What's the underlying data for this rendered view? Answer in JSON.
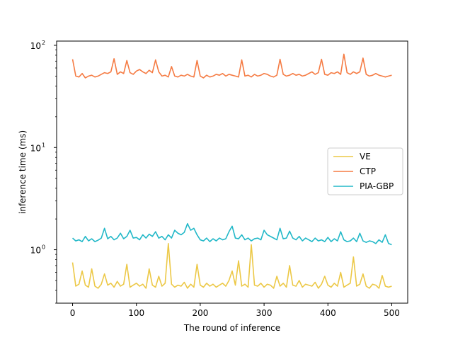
{
  "chart_data": {
    "type": "line",
    "title": "",
    "xlabel": "The round of inference",
    "ylabel": "inference time (ms)",
    "xlim": [
      -25,
      525
    ],
    "ylim": [
      0.3,
      110
    ],
    "yscale": "log",
    "grid": false,
    "legend_position": "center-right",
    "x_ticks": [
      0,
      100,
      200,
      300,
      400,
      500
    ],
    "x_tick_labels": [
      "0",
      "100",
      "200",
      "300",
      "400",
      "500"
    ],
    "y_ticks": [
      1,
      10,
      100
    ],
    "y_tick_labels": [
      "10",
      "10",
      "10"
    ],
    "y_tick_exponents": [
      "0",
      "1",
      "2"
    ],
    "series": [
      {
        "name": "VE",
        "color": "#ecc846",
        "baseline": 0.45,
        "x": [
          0,
          5,
          10,
          15,
          20,
          25,
          30,
          35,
          40,
          45,
          50,
          55,
          60,
          65,
          70,
          75,
          80,
          85,
          90,
          95,
          100,
          105,
          110,
          115,
          120,
          125,
          130,
          135,
          140,
          145,
          150,
          155,
          160,
          165,
          170,
          175,
          180,
          185,
          190,
          195,
          200,
          205,
          210,
          215,
          220,
          225,
          230,
          235,
          240,
          245,
          250,
          255,
          260,
          265,
          270,
          275,
          280,
          285,
          290,
          295,
          300,
          305,
          310,
          315,
          320,
          325,
          330,
          335,
          340,
          345,
          350,
          355,
          360,
          365,
          370,
          375,
          380,
          385,
          390,
          395,
          400,
          405,
          410,
          415,
          420,
          425,
          430,
          435,
          440,
          445,
          450,
          455,
          460,
          465,
          470,
          475,
          480,
          485,
          490,
          495,
          500
        ],
        "values": [
          0.75,
          0.44,
          0.46,
          0.62,
          0.45,
          0.43,
          0.65,
          0.44,
          0.42,
          0.46,
          0.58,
          0.45,
          0.47,
          0.43,
          0.49,
          0.44,
          0.46,
          0.72,
          0.43,
          0.45,
          0.47,
          0.44,
          0.46,
          0.42,
          0.65,
          0.45,
          0.43,
          0.55,
          0.44,
          0.47,
          1.15,
          0.46,
          0.43,
          0.45,
          0.44,
          0.48,
          0.42,
          0.46,
          0.43,
          0.72,
          0.45,
          0.43,
          0.47,
          0.44,
          0.46,
          0.43,
          0.45,
          0.47,
          0.44,
          0.5,
          0.62,
          0.45,
          0.78,
          0.44,
          0.46,
          0.43,
          1.12,
          0.45,
          0.44,
          0.47,
          0.43,
          0.46,
          0.45,
          0.42,
          0.55,
          0.44,
          0.47,
          0.43,
          0.7,
          0.45,
          0.44,
          0.5,
          0.43,
          0.46,
          0.45,
          0.44,
          0.48,
          0.42,
          0.46,
          0.55,
          0.45,
          0.43,
          0.47,
          0.44,
          0.6,
          0.43,
          0.45,
          0.47,
          0.85,
          0.44,
          0.46,
          0.58,
          0.44,
          0.42,
          0.46,
          0.45,
          0.42,
          0.56,
          0.44,
          0.43,
          0.44
        ]
      },
      {
        "name": "CTP",
        "color": "#f57b43",
        "baseline": 51,
        "x": [
          0,
          5,
          10,
          15,
          20,
          25,
          30,
          35,
          40,
          45,
          50,
          55,
          60,
          65,
          70,
          75,
          80,
          85,
          90,
          95,
          100,
          105,
          110,
          115,
          120,
          125,
          130,
          135,
          140,
          145,
          150,
          155,
          160,
          165,
          170,
          175,
          180,
          185,
          190,
          195,
          200,
          205,
          210,
          215,
          220,
          225,
          230,
          235,
          240,
          245,
          250,
          255,
          260,
          265,
          270,
          275,
          280,
          285,
          290,
          295,
          300,
          305,
          310,
          315,
          320,
          325,
          330,
          335,
          340,
          345,
          350,
          355,
          360,
          365,
          370,
          375,
          380,
          385,
          390,
          395,
          400,
          405,
          410,
          415,
          420,
          425,
          430,
          435,
          440,
          445,
          450,
          455,
          460,
          465,
          470,
          475,
          480,
          485,
          490,
          495,
          500
        ],
        "values": [
          73,
          50,
          49,
          53,
          48,
          50,
          51,
          49,
          50,
          52,
          54,
          53,
          55,
          74,
          52,
          55,
          53,
          71,
          54,
          52,
          56,
          58,
          55,
          53,
          57,
          54,
          72,
          55,
          50,
          51,
          49,
          62,
          50,
          49,
          51,
          50,
          52,
          50,
          49,
          71,
          50,
          48,
          51,
          49,
          50,
          52,
          51,
          53,
          50,
          52,
          51,
          50,
          49,
          72,
          50,
          51,
          49,
          52,
          50,
          51,
          53,
          52,
          50,
          49,
          51,
          73,
          52,
          50,
          51,
          53,
          51,
          52,
          50,
          51,
          53,
          55,
          52,
          54,
          73,
          52,
          51,
          54,
          53,
          55,
          52,
          82,
          54,
          52,
          55,
          53,
          55,
          75,
          52,
          50,
          51,
          53,
          51,
          50,
          49,
          50,
          51
        ]
      },
      {
        "name": "PIA-GBP",
        "color": "#22b8c8",
        "baseline": 1.25,
        "x": [
          0,
          5,
          10,
          15,
          20,
          25,
          30,
          35,
          40,
          45,
          50,
          55,
          60,
          65,
          70,
          75,
          80,
          85,
          90,
          95,
          100,
          105,
          110,
          115,
          120,
          125,
          130,
          135,
          140,
          145,
          150,
          155,
          160,
          165,
          170,
          175,
          180,
          185,
          190,
          195,
          200,
          205,
          210,
          215,
          220,
          225,
          230,
          235,
          240,
          245,
          250,
          255,
          260,
          265,
          270,
          275,
          280,
          285,
          290,
          295,
          300,
          305,
          310,
          315,
          320,
          325,
          330,
          335,
          340,
          345,
          350,
          355,
          360,
          365,
          370,
          375,
          380,
          385,
          390,
          395,
          400,
          405,
          410,
          415,
          420,
          425,
          430,
          435,
          440,
          445,
          450,
          455,
          460,
          465,
          470,
          475,
          480,
          485,
          490,
          495,
          500
        ],
        "values": [
          1.3,
          1.22,
          1.25,
          1.2,
          1.35,
          1.22,
          1.28,
          1.2,
          1.24,
          1.3,
          1.62,
          1.28,
          1.35,
          1.25,
          1.3,
          1.45,
          1.28,
          1.35,
          1.55,
          1.3,
          1.32,
          1.25,
          1.4,
          1.3,
          1.42,
          1.35,
          1.5,
          1.3,
          1.35,
          1.25,
          1.4,
          1.3,
          1.55,
          1.45,
          1.4,
          1.48,
          1.8,
          1.55,
          1.62,
          1.4,
          1.25,
          1.22,
          1.3,
          1.2,
          1.28,
          1.22,
          1.3,
          1.25,
          1.28,
          1.5,
          1.7,
          1.3,
          1.28,
          1.4,
          1.25,
          1.3,
          1.22,
          1.28,
          1.3,
          1.25,
          1.55,
          1.4,
          1.35,
          1.3,
          1.25,
          1.62,
          1.28,
          1.3,
          1.52,
          1.3,
          1.25,
          1.35,
          1.22,
          1.3,
          1.25,
          1.2,
          1.3,
          1.22,
          1.25,
          1.2,
          1.32,
          1.2,
          1.28,
          1.22,
          1.5,
          1.25,
          1.2,
          1.22,
          1.3,
          1.2,
          1.45,
          1.22,
          1.18,
          1.22,
          1.2,
          1.15,
          1.25,
          1.18,
          1.4,
          1.15,
          1.12
        ]
      }
    ]
  }
}
